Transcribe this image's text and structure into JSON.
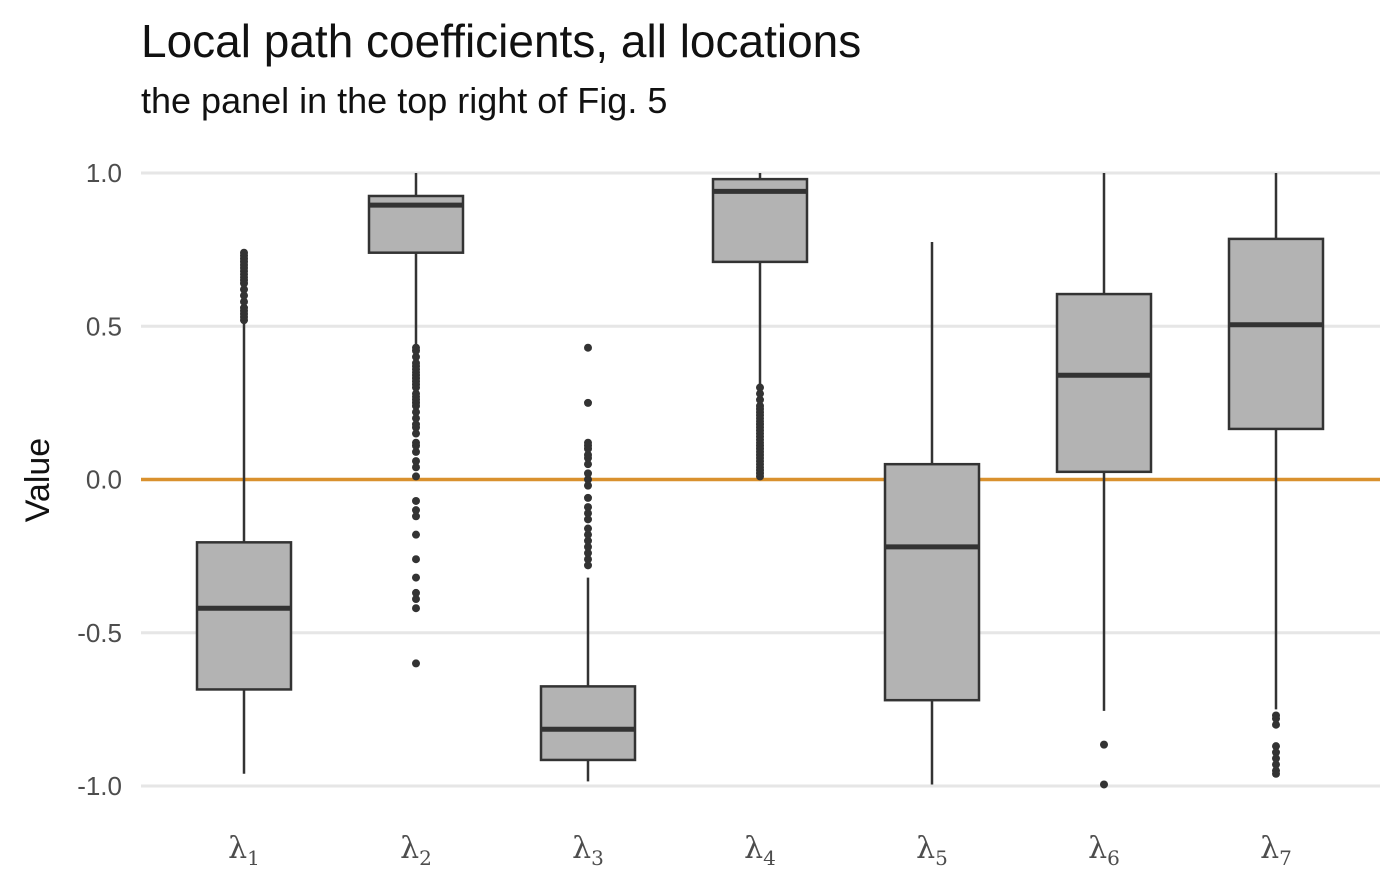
{
  "chart_data": {
    "type": "boxplot",
    "title": "Local path coefficients, all locations",
    "subtitle": "the panel in the top right of Fig. 5",
    "ylabel": "Value",
    "xlabel": "",
    "ylim": [
      -1.0,
      1.0
    ],
    "yticks": [
      -1.0,
      -0.5,
      0.0,
      0.5,
      1.0
    ],
    "ytick_labels": [
      "-1.0",
      "-0.5",
      "0.0",
      "0.5",
      "1.0"
    ],
    "reference_line": {
      "y": 0.0,
      "color": "#d9912e"
    },
    "grid": true,
    "box_fill": "#b3b3b3",
    "box_stroke": "#333333",
    "categories": [
      {
        "symbol": "λ",
        "sub": "1",
        "whisker_low": -0.96,
        "q1": -0.685,
        "median": -0.42,
        "q3": -0.205,
        "whisker_high": 0.51,
        "outliers": [
          0.52,
          0.53,
          0.54,
          0.55,
          0.56,
          0.58,
          0.6,
          0.62,
          0.64,
          0.65,
          0.66,
          0.67,
          0.68,
          0.69,
          0.7,
          0.71,
          0.72,
          0.73,
          0.74
        ]
      },
      {
        "symbol": "λ",
        "sub": "2",
        "whisker_low": 0.44,
        "q1": 0.74,
        "median": 0.895,
        "q3": 0.925,
        "whisker_high": 1.0,
        "outliers": [
          -0.6,
          -0.42,
          -0.39,
          -0.37,
          -0.32,
          -0.26,
          -0.18,
          -0.12,
          -0.1,
          -0.07,
          0.01,
          0.04,
          0.06,
          0.09,
          0.11,
          0.12,
          0.15,
          0.17,
          0.18,
          0.2,
          0.22,
          0.24,
          0.25,
          0.26,
          0.27,
          0.28,
          0.3,
          0.31,
          0.32,
          0.33,
          0.34,
          0.35,
          0.36,
          0.37,
          0.38,
          0.4,
          0.42,
          0.43
        ]
      },
      {
        "symbol": "λ",
        "sub": "3",
        "whisker_low": -0.985,
        "q1": -0.915,
        "median": -0.815,
        "q3": -0.675,
        "whisker_high": -0.32,
        "outliers": [
          -0.28,
          -0.26,
          -0.24,
          -0.22,
          -0.2,
          -0.18,
          -0.16,
          -0.13,
          -0.11,
          -0.09,
          -0.06,
          -0.02,
          0.0,
          0.02,
          0.05,
          0.07,
          0.08,
          0.1,
          0.11,
          0.12,
          0.25,
          0.43
        ]
      },
      {
        "symbol": "λ",
        "sub": "4",
        "whisker_low": 0.31,
        "q1": 0.71,
        "median": 0.94,
        "q3": 0.98,
        "whisker_high": 1.0,
        "outliers": [
          0.01,
          0.02,
          0.03,
          0.04,
          0.05,
          0.06,
          0.07,
          0.08,
          0.09,
          0.1,
          0.11,
          0.12,
          0.13,
          0.14,
          0.15,
          0.16,
          0.17,
          0.18,
          0.19,
          0.2,
          0.21,
          0.22,
          0.23,
          0.24,
          0.26,
          0.28,
          0.3
        ]
      },
      {
        "symbol": "λ",
        "sub": "5",
        "whisker_low": -0.995,
        "q1": -0.72,
        "median": -0.22,
        "q3": 0.05,
        "whisker_high": 0.775,
        "outliers": []
      },
      {
        "symbol": "λ",
        "sub": "6",
        "whisker_low": -0.755,
        "q1": 0.025,
        "median": 0.34,
        "q3": 0.605,
        "whisker_high": 1.0,
        "outliers": [
          -0.865,
          -0.995
        ]
      },
      {
        "symbol": "λ",
        "sub": "7",
        "whisker_low": -0.75,
        "q1": 0.165,
        "median": 0.505,
        "q3": 0.785,
        "whisker_high": 1.0,
        "outliers": [
          -0.77,
          -0.78,
          -0.8,
          -0.87,
          -0.89,
          -0.91,
          -0.93,
          -0.95,
          -0.96
        ]
      }
    ]
  }
}
